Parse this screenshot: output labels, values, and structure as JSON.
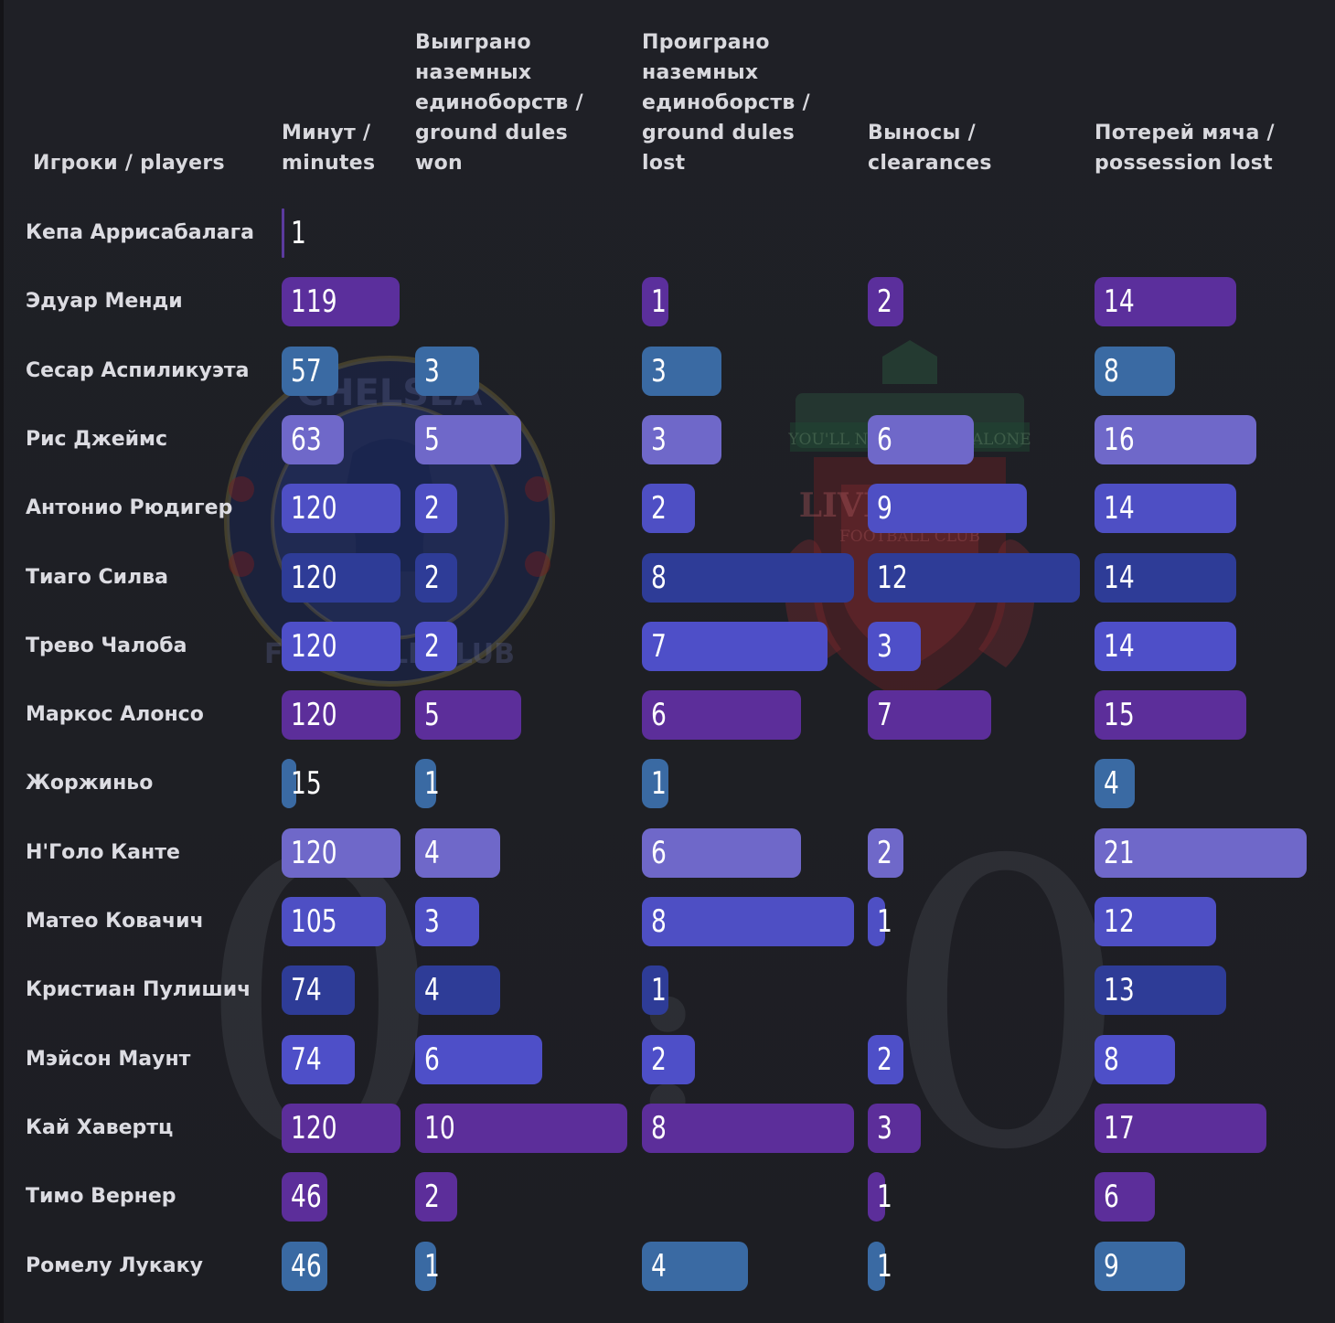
{
  "chart_data": {
    "type": "table",
    "headers": {
      "player": "Игроки / players",
      "minutes": "Минут / minutes",
      "duels_won": "Выиграно наземных единоборств / ground dules won",
      "duels_lost": "Проиграно наземных единоборств / ground dules lost",
      "clearances": "Выносы / clearances",
      "possession_lost": "Потерей мяча / possession lost"
    },
    "header_lines": {
      "player": [
        "Игроки / players"
      ],
      "minutes": [
        "Минут /",
        "minutes"
      ],
      "duels_won": [
        "Выиграно",
        "наземных",
        "единоборств /",
        "ground dules",
        "won"
      ],
      "duels_lost": [
        "Проиграно",
        "наземных",
        "единоборств /",
        "ground dules",
        "lost"
      ],
      "clearances": [
        "Выносы /",
        "clearances"
      ],
      "possession_lost": [
        "Потерей мяча /",
        "possession lost"
      ]
    },
    "column_max": {
      "minutes": 120,
      "duels_won": 10,
      "duels_lost": 8,
      "clearances": 12,
      "possession_lost": 21
    },
    "rows": [
      {
        "player": "Кепа Аррисабалага",
        "minutes": 1,
        "duels_won": null,
        "duels_lost": null,
        "clearances": null,
        "possession_lost": null,
        "color": "#5b3a9e"
      },
      {
        "player": "Эдуар Менди",
        "minutes": 119,
        "duels_won": null,
        "duels_lost": 1,
        "clearances": 2,
        "possession_lost": 14,
        "color": "#5b2f9c"
      },
      {
        "player": "Сесар Аспиликуэта",
        "minutes": 57,
        "duels_won": 3,
        "duels_lost": 3,
        "clearances": null,
        "possession_lost": 8,
        "color": "#3a6aa3"
      },
      {
        "player": "Рис Джеймс",
        "minutes": 63,
        "duels_won": 5,
        "duels_lost": 3,
        "clearances": 6,
        "possession_lost": 16,
        "color": "#6f68c9"
      },
      {
        "player": "Антонио Рюдигер",
        "minutes": 120,
        "duels_won": 2,
        "duels_lost": 2,
        "clearances": 9,
        "possession_lost": 14,
        "color": "#4e4fc4"
      },
      {
        "player": "Тиаго Силва",
        "minutes": 120,
        "duels_won": 2,
        "duels_lost": 8,
        "clearances": 12,
        "possession_lost": 14,
        "color": "#2e3c97"
      },
      {
        "player": "Трево Чалоба",
        "minutes": 120,
        "duels_won": 2,
        "duels_lost": 7,
        "clearances": 3,
        "possession_lost": 14,
        "color": "#4e4fc8"
      },
      {
        "player": "Маркос Алонсо",
        "minutes": 120,
        "duels_won": 5,
        "duels_lost": 6,
        "clearances": 7,
        "possession_lost": 15,
        "color": "#5c2e9a"
      },
      {
        "player": "Жоржиньо",
        "minutes": 15,
        "duels_won": 1,
        "duels_lost": 1,
        "clearances": null,
        "possession_lost": 4,
        "color": "#3a6aa3"
      },
      {
        "player": "Н'Голо Канте",
        "minutes": 120,
        "duels_won": 4,
        "duels_lost": 6,
        "clearances": 2,
        "possession_lost": 21,
        "color": "#6f68c9"
      },
      {
        "player": "Матео Ковачич",
        "minutes": 105,
        "duels_won": 3,
        "duels_lost": 8,
        "clearances": 1,
        "possession_lost": 12,
        "color": "#4e4fc4"
      },
      {
        "player": "Кристиан Пулишич",
        "minutes": 74,
        "duels_won": 4,
        "duels_lost": 1,
        "clearances": null,
        "possession_lost": 13,
        "color": "#2e3c97"
      },
      {
        "player": "Мэйсон Маунт",
        "minutes": 74,
        "duels_won": 6,
        "duels_lost": 2,
        "clearances": 2,
        "possession_lost": 8,
        "color": "#4e4fc8"
      },
      {
        "player": "Кай Хавертц",
        "minutes": 120,
        "duels_won": 10,
        "duels_lost": 8,
        "clearances": 3,
        "possession_lost": 17,
        "color": "#5c2e9a"
      },
      {
        "player": "Тимо Вернер",
        "minutes": 46,
        "duels_won": 2,
        "duels_lost": null,
        "clearances": 1,
        "possession_lost": 6,
        "color": "#5c2e9a"
      },
      {
        "player": "Ромелу Лукаку",
        "minutes": 46,
        "duels_won": 1,
        "duels_lost": 4,
        "clearances": 1,
        "possession_lost": 9,
        "color": "#3a6aa3"
      }
    ]
  },
  "watermarks": {
    "left_icon": "chelsea-crest-icon",
    "right_icon": "liverpool-crest-icon",
    "left_text": "CHELSEA",
    "left_text_bottom": "FOOTBALL CLUB",
    "right_text": "LIVERPOOL",
    "right_text_sub": "FOOTBALL CLUB",
    "right_banner": "YOU'LL NEVER WALK ALONE",
    "score_home": "0",
    "score_sep": ":",
    "score_away": "0"
  }
}
